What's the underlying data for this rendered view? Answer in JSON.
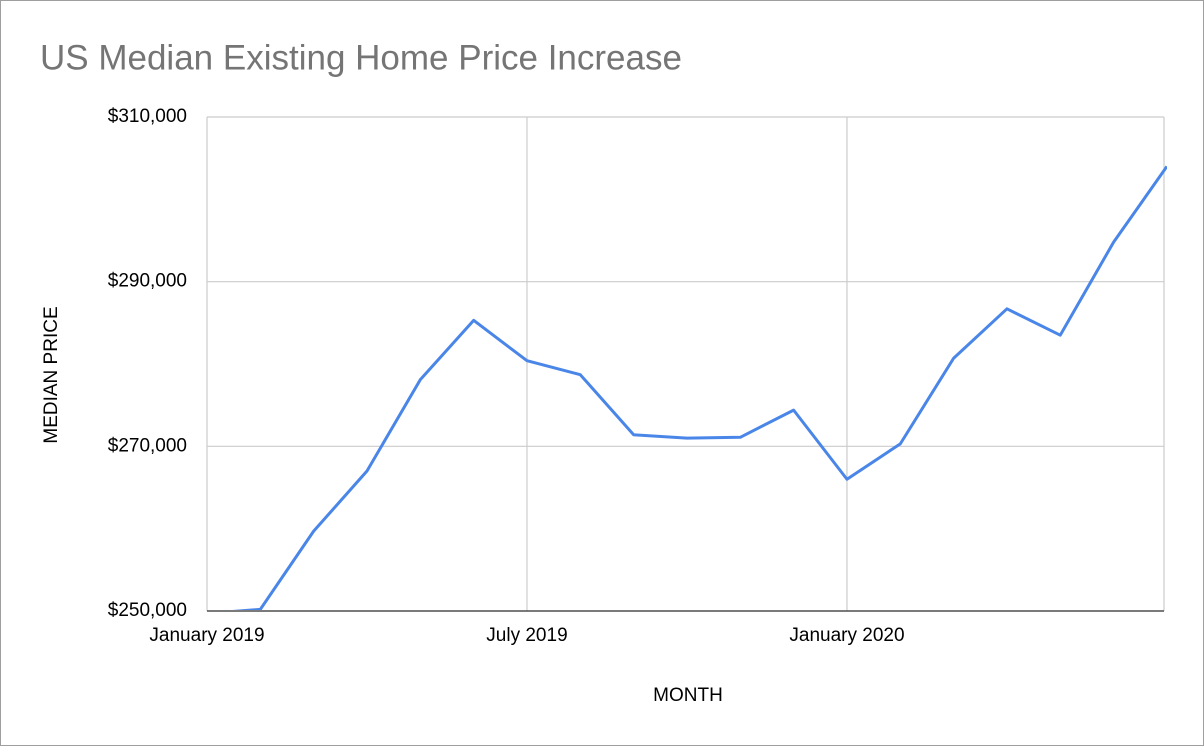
{
  "chart_data": {
    "type": "line",
    "title": "US Median Existing Home Price Increase",
    "x_label": "MONTH",
    "y_label": "MEDIAN PRICE",
    "categories": [
      "January 2019",
      null,
      null,
      null,
      null,
      null,
      "July 2019",
      null,
      null,
      null,
      null,
      null,
      "January 2020",
      null,
      null,
      null,
      null,
      null,
      null
    ],
    "series": [
      {
        "name": "Median Price",
        "color": "#4a86e8",
        "values": [
          249700,
          250200,
          259700,
          267000,
          278100,
          285300,
          280400,
          278700,
          271400,
          271000,
          271100,
          274400,
          266000,
          270300,
          280700,
          286700,
          283500,
          294800,
          304000
        ]
      }
    ],
    "ylim": [
      250000,
      310000
    ],
    "yticks": [
      {
        "value": 250000,
        "label": "$250,000"
      },
      {
        "value": 270000,
        "label": "$270,000"
      },
      {
        "value": 290000,
        "label": "$290,000"
      },
      {
        "value": 310000,
        "label": "$310,000"
      }
    ],
    "grid": true
  }
}
